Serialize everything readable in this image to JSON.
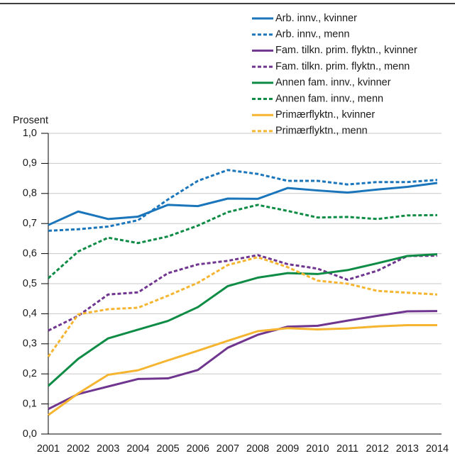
{
  "chart_data": {
    "type": "line",
    "y_label": "Prosent",
    "categories": [
      "2001",
      "2002",
      "2003",
      "2004",
      "2005",
      "2006",
      "2007",
      "2008",
      "2009",
      "2010",
      "2011",
      "2012",
      "2013",
      "2014"
    ],
    "ylim": [
      0,
      1
    ],
    "yticks": [
      {
        "value": 0,
        "label": "0,0"
      },
      {
        "value": 0.1,
        "label": "0,1"
      },
      {
        "value": 0.2,
        "label": "0,2"
      },
      {
        "value": 0.3,
        "label": "0,3"
      },
      {
        "value": 0.4,
        "label": "0,4"
      },
      {
        "value": 0.5,
        "label": "0,5"
      },
      {
        "value": 0.6,
        "label": "0,6"
      },
      {
        "value": 0.7,
        "label": "0,7"
      },
      {
        "value": 0.8,
        "label": "0,8"
      },
      {
        "value": 0.9,
        "label": "0,9"
      },
      {
        "value": 1,
        "label": "1,0"
      }
    ],
    "grid": true,
    "legend": "upper right",
    "series": [
      {
        "name": "Arb. innv., kvinner",
        "color": "#1a75bb",
        "dashed": false,
        "values": [
          0.695,
          0.74,
          0.715,
          0.723,
          0.762,
          0.758,
          0.783,
          0.782,
          0.818,
          0.81,
          0.803,
          0.813,
          0.822,
          0.835
        ]
      },
      {
        "name": "Arb. innv., menn",
        "color": "#1a75bb",
        "dashed": true,
        "values": [
          0.676,
          0.681,
          0.69,
          0.711,
          0.78,
          0.842,
          0.878,
          0.865,
          0.842,
          0.842,
          0.83,
          0.838,
          0.838,
          0.845
        ]
      },
      {
        "name": "Fam. tilkn. prim. flyktn., kvinner",
        "color": "#70368f",
        "dashed": false,
        "values": [
          0.083,
          0.133,
          0.158,
          0.183,
          0.185,
          0.213,
          0.287,
          0.33,
          0.357,
          0.36,
          0.377,
          0.393,
          0.408,
          0.409
        ]
      },
      {
        "name": "Fam. tilkn. prim. flyktn., menn",
        "color": "#70368f",
        "dashed": true,
        "values": [
          0.344,
          0.393,
          0.464,
          0.471,
          0.535,
          0.564,
          0.576,
          0.595,
          0.565,
          0.55,
          0.513,
          0.543,
          0.592,
          0.593
        ]
      },
      {
        "name": "Annen fam. innv., kvinner",
        "color": "#0e8c45",
        "dashed": false,
        "values": [
          0.16,
          0.25,
          0.318,
          0.347,
          0.376,
          0.422,
          0.492,
          0.52,
          0.535,
          0.532,
          0.545,
          0.568,
          0.592,
          0.598
        ]
      },
      {
        "name": "Annen fam. innv., menn",
        "color": "#0e8c45",
        "dashed": true,
        "values": [
          0.518,
          0.607,
          0.653,
          0.635,
          0.657,
          0.693,
          0.738,
          0.762,
          0.742,
          0.72,
          0.722,
          0.715,
          0.727,
          0.728
        ]
      },
      {
        "name": "Primærflyktn., kvinner",
        "color": "#f5b531",
        "dashed": false,
        "values": [
          0.063,
          0.135,
          0.197,
          0.212,
          0.245,
          0.277,
          0.31,
          0.342,
          0.352,
          0.348,
          0.351,
          0.358,
          0.362,
          0.362
        ]
      },
      {
        "name": "Primærflyktn., menn",
        "color": "#f5b531",
        "dashed": true,
        "values": [
          0.257,
          0.398,
          0.415,
          0.42,
          0.46,
          0.503,
          0.562,
          0.588,
          0.555,
          0.51,
          0.5,
          0.476,
          0.47,
          0.464
        ]
      }
    ]
  }
}
